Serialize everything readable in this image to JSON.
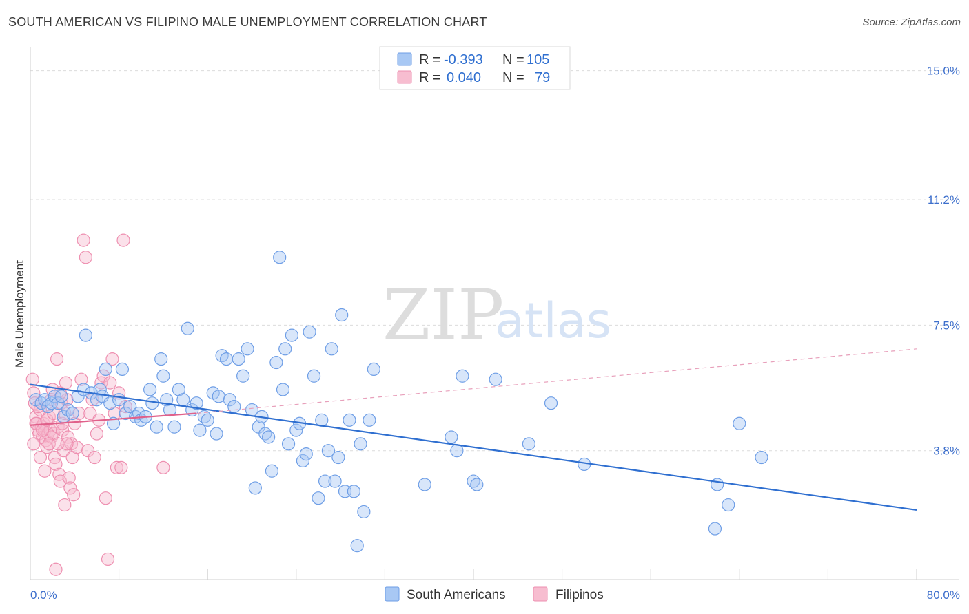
{
  "header": {
    "title": "SOUTH AMERICAN VS FILIPINO MALE UNEMPLOYMENT CORRELATION CHART",
    "source": "Source: ZipAtlas.com"
  },
  "watermark": {
    "zip": "ZIP",
    "atlas": "atlas"
  },
  "legend": {
    "rows": [
      {
        "r_label": "R = ",
        "r_value": "-0.393",
        "n_label": "N = ",
        "n_value": "105",
        "color": "#a8c8f4",
        "stroke": "#6e9ee6"
      },
      {
        "r_label": "R = ",
        "r_value": "0.040",
        "n_label": "N = ",
        "n_value": "79",
        "color": "#f7bdd0",
        "stroke": "#ee8fb0"
      }
    ]
  },
  "bottom_legend": [
    {
      "label": "South Americans",
      "color": "#a8c8f4",
      "stroke": "#6e9ee6"
    },
    {
      "label": "Filipinos",
      "color": "#f7bdd0",
      "stroke": "#ee8fb0"
    }
  ],
  "chart_data": {
    "type": "scatter",
    "title": "SOUTH AMERICAN VS FILIPINO MALE UNEMPLOYMENT CORRELATION CHART",
    "xlabel": "",
    "ylabel": "Male Unemployment",
    "xlim": [
      0,
      80
    ],
    "ylim": [
      0,
      15.5
    ],
    "x_ticks": [
      0,
      80
    ],
    "x_tick_labels": [
      "0.0%",
      "80.0%"
    ],
    "y_ticks": [
      3.8,
      7.5,
      11.2,
      15.0
    ],
    "y_tick_labels": [
      "3.8%",
      "7.5%",
      "11.2%",
      "15.0%"
    ],
    "grid": true,
    "legend_position": "top-center",
    "series": [
      {
        "name": "South Americans",
        "color": "#6e9ee6",
        "fill": "#a8c8f4",
        "trend": {
          "x": [
            0,
            80
          ],
          "y": [
            5.75,
            2.05
          ],
          "style": "solid",
          "color": "#2f6fd0"
        },
        "points": [
          [
            0.5,
            5.3
          ],
          [
            1.0,
            5.2
          ],
          [
            1.3,
            5.3
          ],
          [
            1.6,
            5.1
          ],
          [
            1.9,
            5.2
          ],
          [
            2.2,
            5.4
          ],
          [
            2.5,
            5.2
          ],
          [
            2.8,
            5.4
          ],
          [
            3.0,
            4.8
          ],
          [
            3.4,
            5.0
          ],
          [
            3.8,
            4.9
          ],
          [
            4.3,
            5.4
          ],
          [
            4.8,
            5.6
          ],
          [
            5.0,
            7.2
          ],
          [
            5.5,
            5.5
          ],
          [
            6.0,
            5.3
          ],
          [
            6.3,
            5.6
          ],
          [
            6.5,
            5.4
          ],
          [
            6.8,
            6.2
          ],
          [
            7.2,
            5.2
          ],
          [
            7.5,
            4.6
          ],
          [
            8.0,
            5.3
          ],
          [
            8.3,
            6.2
          ],
          [
            8.6,
            4.9
          ],
          [
            9.0,
            5.1
          ],
          [
            9.5,
            4.8
          ],
          [
            9.8,
            4.9
          ],
          [
            10.0,
            4.7
          ],
          [
            10.4,
            4.8
          ],
          [
            10.8,
            5.6
          ],
          [
            11.0,
            5.2
          ],
          [
            11.4,
            4.5
          ],
          [
            11.8,
            6.5
          ],
          [
            12.0,
            6.0
          ],
          [
            12.3,
            5.3
          ],
          [
            12.6,
            5.0
          ],
          [
            13.0,
            4.5
          ],
          [
            13.4,
            5.6
          ],
          [
            13.8,
            5.3
          ],
          [
            14.2,
            7.4
          ],
          [
            14.6,
            5.0
          ],
          [
            15.0,
            5.2
          ],
          [
            15.3,
            4.4
          ],
          [
            15.7,
            4.8
          ],
          [
            16.0,
            4.7
          ],
          [
            16.5,
            5.5
          ],
          [
            16.8,
            4.3
          ],
          [
            17.0,
            5.4
          ],
          [
            17.3,
            6.6
          ],
          [
            17.7,
            6.5
          ],
          [
            18.0,
            5.3
          ],
          [
            18.4,
            5.1
          ],
          [
            18.8,
            6.5
          ],
          [
            19.2,
            6.0
          ],
          [
            19.6,
            6.8
          ],
          [
            20.0,
            5.0
          ],
          [
            20.3,
            2.7
          ],
          [
            20.6,
            4.5
          ],
          [
            20.9,
            4.8
          ],
          [
            21.2,
            4.3
          ],
          [
            21.5,
            4.2
          ],
          [
            21.8,
            3.2
          ],
          [
            22.2,
            6.4
          ],
          [
            22.5,
            9.5
          ],
          [
            22.8,
            5.6
          ],
          [
            23.0,
            6.8
          ],
          [
            23.3,
            4.0
          ],
          [
            23.6,
            7.2
          ],
          [
            24.0,
            4.4
          ],
          [
            24.3,
            4.6
          ],
          [
            24.6,
            3.5
          ],
          [
            24.9,
            3.7
          ],
          [
            25.2,
            7.3
          ],
          [
            25.6,
            6.0
          ],
          [
            26.0,
            2.4
          ],
          [
            26.3,
            4.7
          ],
          [
            26.6,
            2.9
          ],
          [
            26.9,
            3.8
          ],
          [
            27.2,
            6.8
          ],
          [
            27.5,
            2.9
          ],
          [
            27.8,
            3.6
          ],
          [
            28.1,
            7.8
          ],
          [
            28.4,
            2.6
          ],
          [
            28.8,
            4.7
          ],
          [
            29.2,
            2.6
          ],
          [
            29.5,
            1.0
          ],
          [
            29.8,
            4.0
          ],
          [
            30.1,
            2.0
          ],
          [
            30.6,
            4.7
          ],
          [
            31.0,
            6.2
          ],
          [
            35.6,
            2.8
          ],
          [
            38.0,
            4.2
          ],
          [
            38.5,
            3.8
          ],
          [
            39.0,
            6.0
          ],
          [
            40.0,
            2.9
          ],
          [
            40.3,
            2.8
          ],
          [
            42.0,
            5.9
          ],
          [
            45.0,
            4.0
          ],
          [
            47.0,
            5.2
          ],
          [
            50.0,
            3.4
          ],
          [
            61.8,
            1.5
          ],
          [
            62.0,
            2.8
          ],
          [
            63.0,
            2.2
          ],
          [
            64.0,
            4.6
          ],
          [
            66.0,
            3.6
          ]
        ]
      },
      {
        "name": "Filipinos",
        "color": "#ee8fb0",
        "fill": "#f7bdd0",
        "trend": {
          "x": [
            0,
            15
          ],
          "y": [
            4.55,
            4.9
          ],
          "style": "solid",
          "color": "#e0608a"
        },
        "trend_extension": {
          "x": [
            15,
            80
          ],
          "y": [
            4.9,
            6.8
          ],
          "style": "dashed",
          "color": "#e8a0bb"
        },
        "points": [
          [
            0.2,
            5.9
          ],
          [
            0.3,
            5.5
          ],
          [
            0.4,
            5.2
          ],
          [
            0.5,
            4.8
          ],
          [
            0.6,
            4.6
          ],
          [
            0.7,
            4.4
          ],
          [
            0.8,
            4.3
          ],
          [
            0.9,
            5.0
          ],
          [
            1.0,
            4.5
          ],
          [
            1.1,
            4.2
          ],
          [
            1.2,
            4.6
          ],
          [
            1.3,
            4.4
          ],
          [
            1.4,
            4.1
          ],
          [
            1.5,
            3.9
          ],
          [
            1.6,
            4.3
          ],
          [
            1.7,
            4.8
          ],
          [
            1.8,
            4.4
          ],
          [
            1.9,
            4.2
          ],
          [
            2.0,
            5.6
          ],
          [
            2.1,
            4.3
          ],
          [
            2.2,
            3.6
          ],
          [
            2.3,
            3.4
          ],
          [
            2.4,
            6.5
          ],
          [
            2.5,
            4.5
          ],
          [
            2.6,
            3.1
          ],
          [
            2.7,
            2.9
          ],
          [
            2.8,
            5.2
          ],
          [
            2.9,
            4.4
          ],
          [
            3.0,
            3.8
          ],
          [
            3.1,
            2.2
          ],
          [
            3.2,
            5.8
          ],
          [
            3.3,
            5.3
          ],
          [
            3.4,
            4.2
          ],
          [
            3.5,
            3.0
          ],
          [
            3.6,
            2.7
          ],
          [
            3.7,
            4.0
          ],
          [
            3.8,
            3.6
          ],
          [
            3.9,
            2.5
          ],
          [
            4.0,
            4.6
          ],
          [
            4.2,
            3.9
          ],
          [
            4.4,
            4.9
          ],
          [
            4.6,
            5.9
          ],
          [
            4.8,
            10.0
          ],
          [
            5.0,
            9.5
          ],
          [
            5.2,
            3.8
          ],
          [
            5.4,
            4.9
          ],
          [
            5.6,
            5.3
          ],
          [
            5.8,
            3.6
          ],
          [
            6.0,
            4.3
          ],
          [
            6.2,
            4.7
          ],
          [
            6.4,
            5.8
          ],
          [
            6.6,
            6.0
          ],
          [
            6.8,
            2.4
          ],
          [
            7.0,
            0.6
          ],
          [
            7.2,
            5.8
          ],
          [
            7.4,
            6.5
          ],
          [
            7.6,
            4.9
          ],
          [
            7.8,
            3.3
          ],
          [
            8.0,
            5.5
          ],
          [
            8.2,
            3.3
          ],
          [
            8.4,
            10.0
          ],
          [
            8.6,
            5.1
          ],
          [
            0.3,
            4.0
          ],
          [
            0.5,
            4.6
          ],
          [
            0.7,
            5.1
          ],
          [
            0.9,
            3.6
          ],
          [
            1.1,
            4.4
          ],
          [
            1.3,
            3.2
          ],
          [
            1.5,
            4.7
          ],
          [
            1.7,
            4.0
          ],
          [
            1.9,
            5.3
          ],
          [
            2.1,
            4.9
          ],
          [
            2.3,
            0.3
          ],
          [
            2.5,
            4.0
          ],
          [
            2.7,
            5.5
          ],
          [
            2.9,
            4.6
          ],
          [
            3.1,
            4.9
          ],
          [
            3.3,
            4.0
          ],
          [
            12.0,
            3.3
          ]
        ]
      }
    ]
  }
}
